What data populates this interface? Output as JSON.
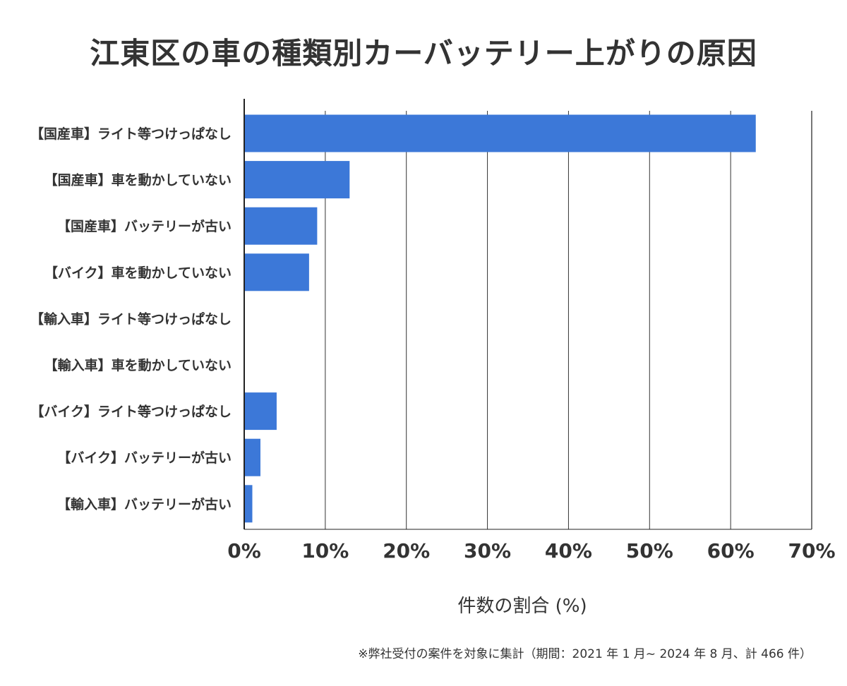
{
  "chart_data": {
    "type": "bar",
    "orientation": "horizontal",
    "title": "江東区の車の種類別カーバッテリー上がりの原因",
    "xlabel": "件数の割合 (%)",
    "ylabel": "",
    "categories": [
      "【国産車】ライト等つけっぱなし",
      "【国産車】車を動かしていない",
      "【国産車】バッテリーが古い",
      "【バイク】車を動かしていない",
      "【輸入車】ライト等つけっぱなし",
      "【輸入車】車を動かしていない",
      "【バイク】ライト等つけっぱなし",
      "【バイク】バッテリーが古い",
      "【輸入車】バッテリーが古い"
    ],
    "values": [
      63.1,
      13.0,
      9.0,
      8.0,
      0,
      0,
      4.0,
      2.0,
      1.0
    ],
    "xlim": [
      0,
      70
    ],
    "xticks": [
      0,
      10,
      20,
      30,
      40,
      50,
      60,
      70
    ],
    "xtick_labels": [
      "0%",
      "10%",
      "20%",
      "30%",
      "40%",
      "50%",
      "60%",
      "70%"
    ],
    "grid": true,
    "bar_color": "#3c78d8",
    "note": "※弊社受付の案件を対象に集計（期間：2021 年 1 月~ 2024 年 8 月、計 466 件）"
  }
}
